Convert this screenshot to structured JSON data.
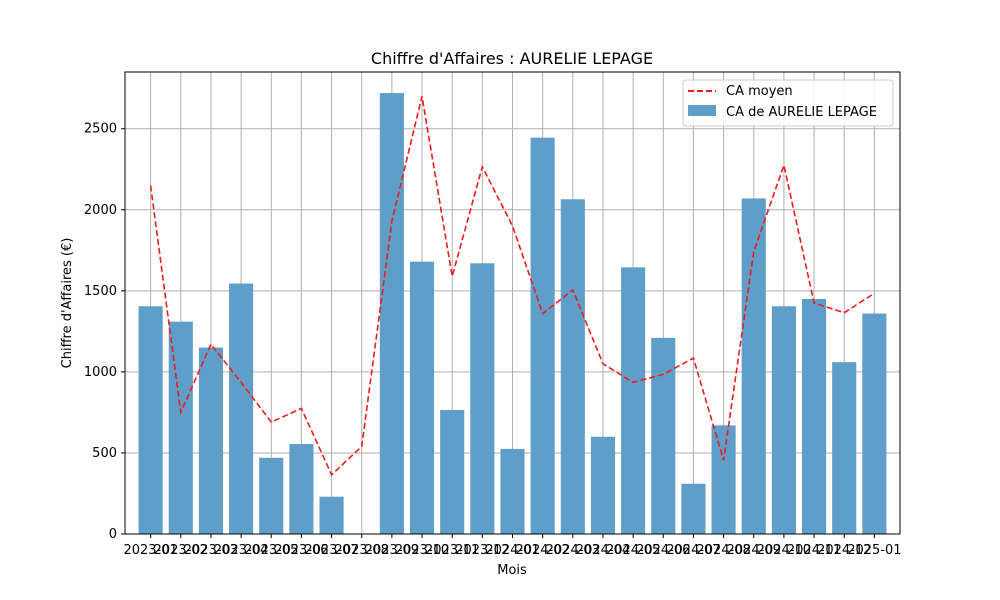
{
  "chart_data": {
    "type": "bar",
    "title": "Chiffre d'Affaires : AURELIE LEPAGE",
    "xlabel": "Mois",
    "ylabel": "Chiffre d'Affaires (€)",
    "ylim": [
      0,
      2850
    ],
    "yticks": [
      0,
      500,
      1000,
      1500,
      2000,
      2500
    ],
    "grid": true,
    "legend_position": "top-right",
    "categories": [
      "2023-01",
      "2023-02",
      "2023-03",
      "2023-04",
      "2023-05",
      "2023-06",
      "2023-07",
      "2023-08",
      "2023-09",
      "2023-10",
      "2023-11",
      "2023-12",
      "2024-01",
      "2024-02",
      "2024-03",
      "2024-04",
      "2024-05",
      "2024-06",
      "2024-07",
      "2024-08",
      "2024-09",
      "2024-10",
      "2024-11",
      "2024-12",
      "2025-01"
    ],
    "series": [
      {
        "name": "CA de AURELIE LEPAGE",
        "type": "bar",
        "color": "#5f9ec9",
        "values": [
          1405,
          1310,
          1150,
          1545,
          470,
          555,
          230,
          0,
          2720,
          1680,
          765,
          1670,
          525,
          2445,
          2065,
          600,
          1645,
          1210,
          310,
          670,
          2070,
          1405,
          1450,
          1060,
          1360
        ]
      },
      {
        "name": "CA moyen",
        "type": "line",
        "style": "dashed",
        "color": "#ee1c1c",
        "values": [
          2150,
          750,
          1170,
          935,
          690,
          775,
          365,
          540,
          1930,
          2700,
          1590,
          2265,
          1900,
          1360,
          1505,
          1050,
          935,
          985,
          1085,
          455,
          1740,
          2275,
          1425,
          1365,
          1485
        ]
      }
    ]
  }
}
